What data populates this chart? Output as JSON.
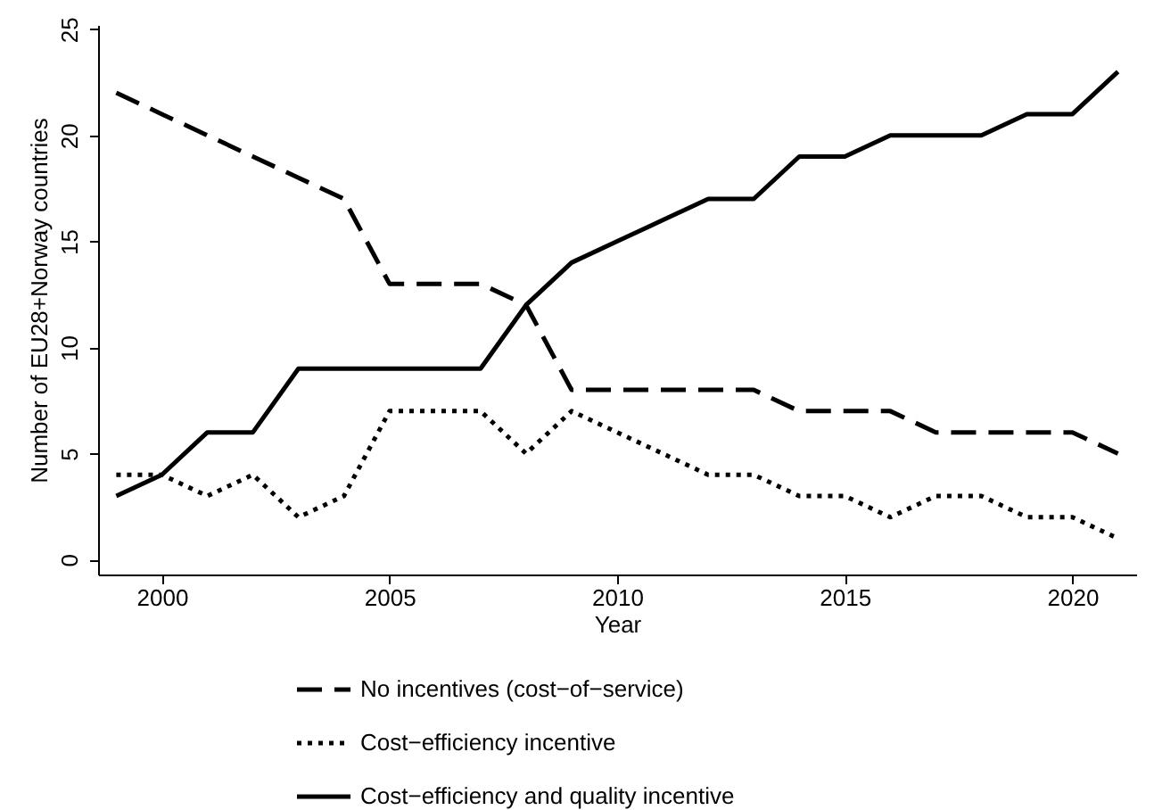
{
  "chart_data": {
    "type": "line",
    "xlabel": "Year",
    "ylabel": "Number of EU28+Norway countries",
    "x": [
      1999,
      2000,
      2001,
      2002,
      2003,
      2004,
      2005,
      2006,
      2007,
      2008,
      2009,
      2010,
      2011,
      2012,
      2013,
      2014,
      2015,
      2016,
      2017,
      2018,
      2019,
      2020,
      2021
    ],
    "xlim": [
      1998.6,
      2021.4
    ],
    "xticks": [
      2000,
      2005,
      2010,
      2015,
      2020
    ],
    "ylim": [
      -0.7,
      25.2
    ],
    "yticks": [
      0,
      5,
      10,
      15,
      20,
      25
    ],
    "legend": "bottom",
    "grid": false,
    "series": [
      {
        "name": "No incentives (cost−of−service)",
        "color": "#000000",
        "line_style": "dashed",
        "values": [
          22,
          21,
          20,
          19,
          18,
          17,
          13,
          13,
          13,
          12,
          8,
          8,
          8,
          8,
          8,
          7,
          7,
          7,
          6,
          6,
          6,
          6,
          5
        ]
      },
      {
        "name": "Cost−efficiency incentive",
        "color": "#000000",
        "line_style": "dotted",
        "values": [
          4,
          4,
          3,
          4,
          2,
          3,
          7,
          7,
          7,
          5,
          7,
          6,
          5,
          4,
          4,
          3,
          3,
          2,
          3,
          3,
          2,
          2,
          1
        ]
      },
      {
        "name": "Cost−efficiency and quality incentive",
        "color": "#000000",
        "line_style": "solid",
        "values": [
          3,
          4,
          6,
          6,
          9,
          9,
          9,
          9,
          9,
          12,
          14,
          15,
          16,
          17,
          17,
          19,
          19,
          20,
          20,
          20,
          21,
          21,
          23
        ]
      }
    ]
  }
}
